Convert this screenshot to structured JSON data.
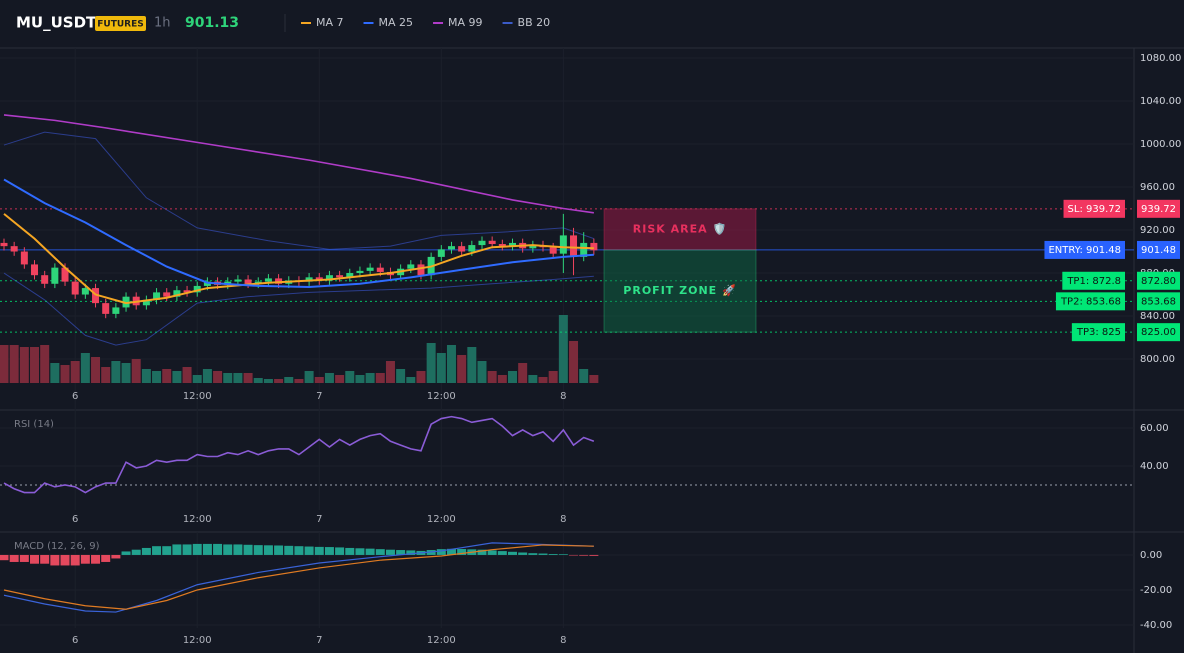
{
  "header": {
    "symbol": "MU_USDT",
    "badge": "FUTURES",
    "interval": "1h",
    "price": 901.13
  },
  "chart_data": [
    {
      "type": "candlestick",
      "categories": [
        null,
        null,
        null,
        null,
        null,
        null,
        null,
        "6",
        null,
        null,
        null,
        null,
        null,
        null,
        null,
        null,
        null,
        null,
        null,
        "12:00",
        null,
        null,
        null,
        null,
        null,
        null,
        null,
        null,
        null,
        null,
        null,
        "7",
        null,
        null,
        null,
        null,
        null,
        null,
        null,
        null,
        null,
        null,
        null,
        "12:00",
        null,
        null,
        null,
        null,
        null,
        null,
        null,
        null,
        null,
        null,
        null,
        "8",
        null,
        null,
        null
      ],
      "open": [
        908,
        905,
        900,
        888,
        878,
        870,
        885,
        872,
        860,
        866,
        852,
        842,
        848,
        858,
        850,
        855,
        862,
        858,
        864,
        862,
        868,
        872,
        869,
        872,
        874,
        870,
        872,
        875,
        870,
        873,
        872,
        876,
        873,
        878,
        876,
        880,
        882,
        885,
        881,
        878,
        884,
        888,
        878,
        895,
        902,
        905,
        900,
        906,
        910,
        907,
        905,
        908,
        903,
        906,
        904,
        898,
        915,
        895,
        908
      ],
      "high": [
        912,
        909,
        904,
        892,
        882,
        889,
        889,
        876,
        870,
        870,
        856,
        852,
        862,
        862,
        859,
        866,
        866,
        868,
        868,
        872,
        876,
        876,
        876,
        878,
        878,
        876,
        879,
        879,
        877,
        877,
        880,
        880,
        882,
        882,
        884,
        886,
        889,
        889,
        885,
        888,
        892,
        892,
        899,
        906,
        909,
        909,
        910,
        914,
        914,
        911,
        912,
        912,
        910,
        910,
        908,
        935,
        922,
        918,
        912
      ],
      "low": [
        901,
        896,
        884,
        874,
        866,
        866,
        868,
        856,
        856,
        848,
        838,
        838,
        844,
        846,
        846,
        851,
        854,
        854,
        858,
        858,
        864,
        865,
        865,
        868,
        866,
        866,
        868,
        866,
        866,
        868,
        868,
        869,
        869,
        872,
        872,
        876,
        878,
        877,
        874,
        874,
        880,
        874,
        874,
        891,
        898,
        896,
        896,
        902,
        903,
        901,
        901,
        899,
        899,
        900,
        894,
        880,
        878,
        891,
        897
      ],
      "close": [
        905,
        900,
        888,
        878,
        870,
        885,
        872,
        860,
        866,
        852,
        842,
        848,
        858,
        850,
        855,
        862,
        858,
        864,
        862,
        868,
        872,
        869,
        872,
        874,
        870,
        872,
        875,
        870,
        873,
        872,
        876,
        873,
        878,
        876,
        880,
        882,
        885,
        881,
        878,
        884,
        888,
        878,
        895,
        902,
        905,
        900,
        906,
        910,
        907,
        905,
        908,
        903,
        906,
        904,
        898,
        915,
        895,
        908,
        901.13
      ],
      "up_color": "#2ed47a",
      "down_color": "#f0435f",
      "volume_up_color": "#1e6e60",
      "volume_down_color": "#7c2b3b",
      "volume": [
        38,
        38,
        36,
        36,
        38,
        20,
        18,
        22,
        30,
        26,
        16,
        22,
        20,
        24,
        14,
        12,
        14,
        12,
        16,
        8,
        14,
        12,
        10,
        10,
        10,
        5,
        4,
        4,
        6,
        4,
        12,
        6,
        10,
        8,
        12,
        8,
        10,
        10,
        22,
        14,
        6,
        12,
        40,
        30,
        38,
        28,
        36,
        22,
        12,
        8,
        12,
        20,
        8,
        6,
        12,
        68,
        42,
        14,
        8
      ],
      "series": [
        {
          "name": "MA 7",
          "color": "#f5a623",
          "x": [
            0,
            3,
            6,
            9,
            12,
            16,
            20,
            26,
            32,
            38,
            42,
            45,
            48,
            52,
            55,
            58
          ],
          "values": [
            935,
            912,
            885,
            860,
            852,
            857,
            866,
            871,
            874,
            880,
            886,
            896,
            904,
            906,
            904,
            903
          ]
        },
        {
          "name": "MA 25",
          "color": "#2f6bff",
          "x": [
            0,
            4,
            8,
            12,
            16,
            20,
            25,
            30,
            35,
            40,
            45,
            50,
            55,
            58
          ],
          "values": [
            967,
            945,
            927,
            906,
            886,
            871,
            868,
            867,
            870,
            876,
            883,
            890,
            895,
            897
          ]
        },
        {
          "name": "MA 99",
          "color": "#b03cc8",
          "x": [
            0,
            5,
            10,
            20,
            30,
            40,
            50,
            55,
            58
          ],
          "values": [
            1027,
            1022,
            1015,
            1000,
            985,
            968,
            948,
            940,
            936
          ]
        },
        {
          "name": "BB 20",
          "color": "#2b3d8c",
          "bands": [
            {
              "x": [
                0,
                4,
                9,
                14,
                19,
                26,
                32,
                38,
                43,
                49,
                55,
                58
              ],
              "values": [
                999,
                1011,
                1005,
                950,
                922,
                910,
                902,
                905,
                915,
                918,
                922,
                912
              ]
            },
            {
              "x": [
                0,
                4,
                8,
                11,
                14,
                19,
                24,
                30,
                36,
                42,
                48,
                54,
                58
              ],
              "values": [
                880,
                855,
                822,
                813,
                818,
                852,
                858,
                862,
                864,
                866,
                870,
                874,
                877
              ]
            }
          ]
        }
      ],
      "levels": [
        {
          "value": 939.72,
          "label": "SL: 939.72",
          "value_label": "939.72",
          "color": "#f23660"
        },
        {
          "value": 901.48,
          "label": "ENTRY: 901.48",
          "value_label": "901.48",
          "color": "#2962ff"
        },
        {
          "value": 872.8,
          "label": "TP1: 872.8",
          "value_label": "872.80",
          "color": "#00e676"
        },
        {
          "value": 853.68,
          "label": "TP2: 853.68",
          "value_label": "853.68",
          "color": "#00e676"
        },
        {
          "value": 825,
          "label": "TP3: 825",
          "value_label": "825.00",
          "color": "#00e676"
        }
      ],
      "zones": [
        {
          "label": "RISK AREA 🛡️",
          "color": "#e8305e"
        },
        {
          "label": "PROFIT ZONE 🚀",
          "color": "#2ee38a"
        }
      ],
      "ylim": [
        752.6,
        1089.3
      ],
      "yticks": [
        {
          "value": 800,
          "label": "800.00"
        },
        {
          "value": 840,
          "label": "840.00"
        },
        {
          "value": 880,
          "label": "880.00"
        },
        {
          "value": 920,
          "label": "920.00"
        },
        {
          "value": 960,
          "label": "960.00"
        },
        {
          "value": 1000,
          "label": "1000.00"
        },
        {
          "value": 1040,
          "label": "1040.00"
        },
        {
          "value": 1080,
          "label": "1080.00"
        }
      ]
    },
    {
      "type": "line",
      "title": "RSI (14)",
      "color": "#8a5cd6",
      "values": [
        31,
        28,
        26,
        26,
        31,
        29,
        30,
        29,
        26,
        29,
        31,
        31,
        42,
        39,
        40,
        43,
        42,
        43,
        43,
        46,
        45,
        45,
        47,
        46,
        48,
        46,
        48,
        49,
        49,
        46,
        50,
        54,
        50,
        54,
        51,
        54,
        56,
        57,
        53,
        51,
        49,
        48,
        62,
        65,
        66,
        65,
        63,
        64,
        65,
        61,
        56,
        59,
        56,
        58,
        53,
        59,
        51,
        55,
        53
      ],
      "levels": [
        30
      ],
      "ylim": [
        16.8,
        69.5
      ],
      "yticks": [
        {
          "value": 40,
          "label": "40.00"
        },
        {
          "value": 60,
          "label": "60.00"
        }
      ]
    },
    {
      "type": "macd",
      "title": "MACD (12, 26, 9)",
      "series": [
        {
          "color": "#3a63d8",
          "x": [
            0,
            4,
            8,
            11,
            15,
            19,
            25,
            31,
            37,
            43,
            48,
            53,
            58
          ],
          "values": [
            -23,
            -28,
            -32,
            -32.6,
            -26,
            -17,
            -10,
            -4.6,
            -1,
            2.3,
            6.9,
            6,
            5
          ]
        },
        {
          "color": "#e07b22",
          "x": [
            0,
            4,
            8,
            12,
            16,
            19,
            25,
            31,
            37,
            43,
            48,
            53,
            58
          ],
          "values": [
            -20,
            -25,
            -29,
            -31,
            -26,
            -20,
            -13,
            -7.4,
            -3,
            -0.6,
            3,
            5.7,
            5
          ]
        }
      ],
      "histogram": {
        "up_color": "#22a38f",
        "down_color": "#e4495e",
        "values": [
          -3,
          -4,
          -4,
          -5,
          -5,
          -6,
          -6,
          -6,
          -5,
          -5,
          -4,
          -2,
          2,
          3,
          4,
          5,
          5,
          6,
          6,
          6.3,
          6.3,
          6.3,
          6,
          6,
          5.8,
          5.6,
          5.5,
          5.4,
          5.2,
          5,
          4.8,
          4.6,
          4.5,
          4.3,
          4,
          3.8,
          3.6,
          3.3,
          3,
          2.8,
          2.6,
          2.3,
          2.8,
          3.3,
          3.5,
          3.4,
          3.2,
          3,
          2.6,
          2.2,
          1.8,
          1.4,
          1,
          0.8,
          0.5,
          0.4,
          -0.3,
          -0.4,
          -0.5
        ]
      },
      "ylim": [
        -41.7,
        13.1
      ],
      "yticks": [
        {
          "value": -40,
          "label": "-40.00"
        },
        {
          "value": -20,
          "label": "-20.00"
        },
        {
          "value": 0,
          "label": "0.00"
        }
      ]
    }
  ]
}
